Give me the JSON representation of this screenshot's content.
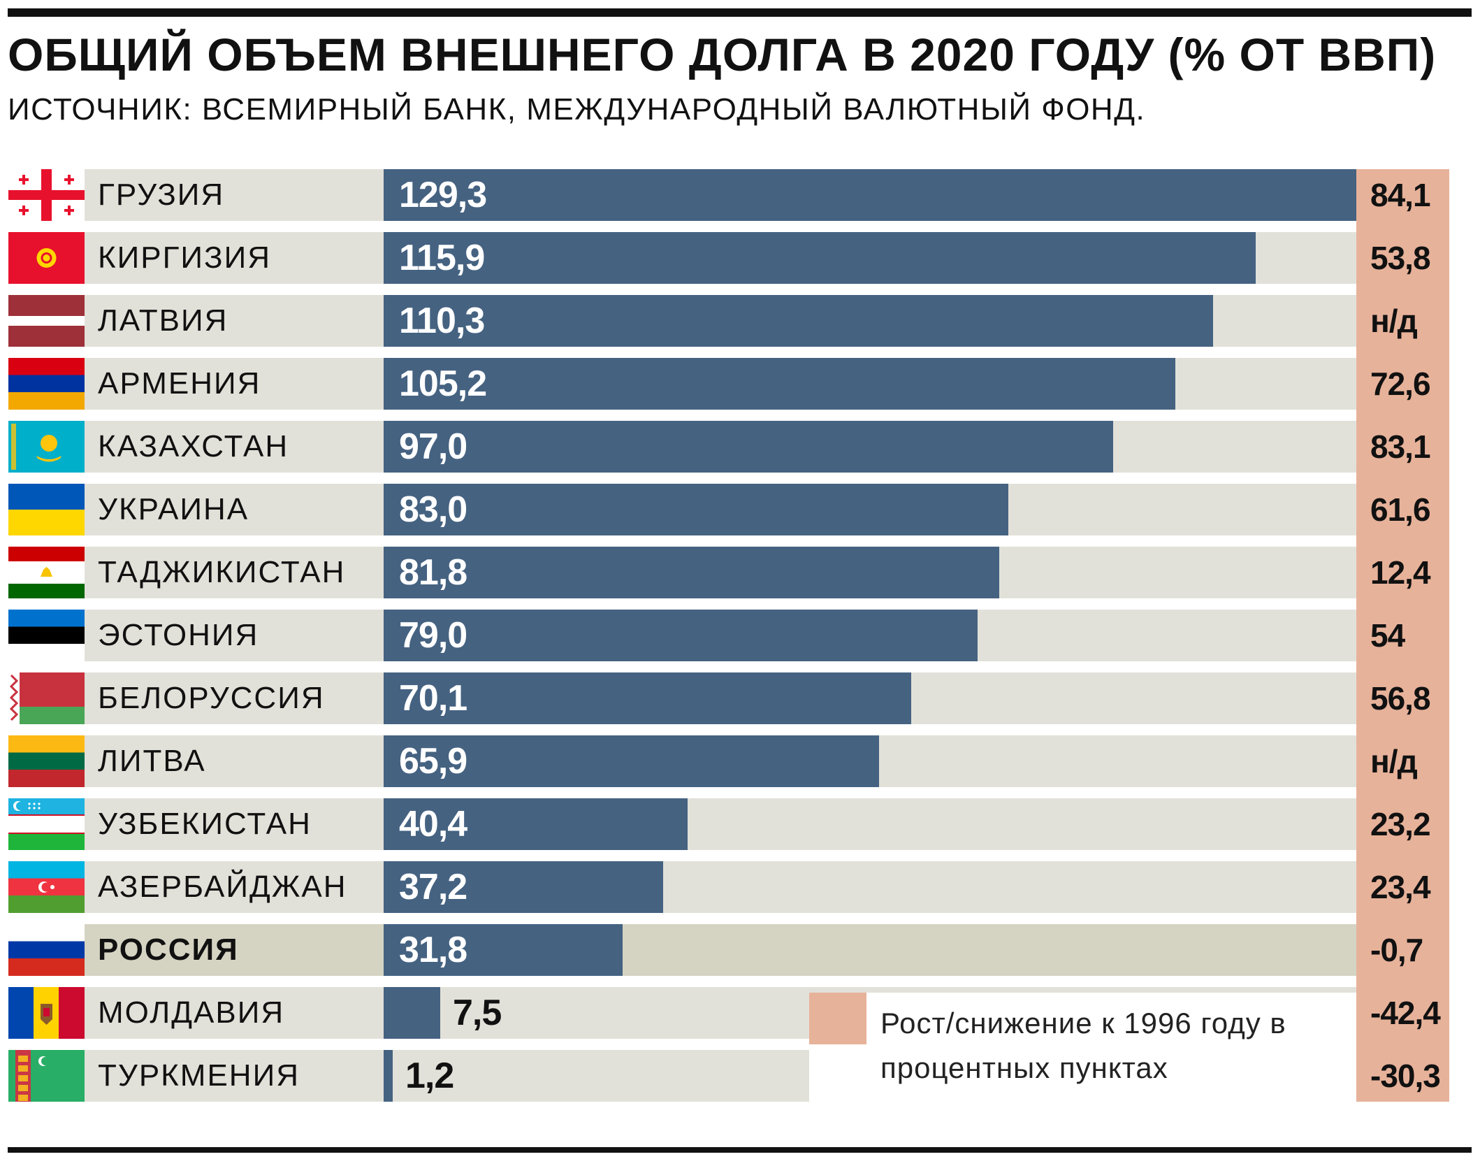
{
  "title": "ОБЩИЙ ОБЪЕМ ВНЕШНЕГО ДОЛГА В 2020 ГОДУ (% ОТ ВВП)",
  "source": "ИСТОЧНИК: ВСЕМИРНЫЙ БАНК, МЕЖДУНАРОДНЫЙ ВАЛЮТНЫЙ ФОНД.",
  "legend": "Рост/снижение к 1996 году в процентных пунктах",
  "colors": {
    "bar": "#456281",
    "track": "#e2e1d9",
    "change": "#e7b29a",
    "highlight_track": "#d5d4c3"
  },
  "chart_data": {
    "type": "bar",
    "orientation": "horizontal",
    "title": "ОБЩИЙ ОБЪЕМ ВНЕШНЕГО ДОЛГА В 2020 ГОДУ (% ОТ ВВП)",
    "xlim": [
      0,
      129.3
    ],
    "categories": [
      "ГРУЗИЯ",
      "КИРГИЗИЯ",
      "ЛАТВИЯ",
      "АРМЕНИЯ",
      "КАЗАХСТАН",
      "УКРАИНА",
      "ТАДЖИКИСТАН",
      "ЭСТОНИЯ",
      "БЕЛОРУССИЯ",
      "ЛИТВА",
      "УЗБЕКИСТАН",
      "АЗЕРБАЙДЖАН",
      "РОССИЯ",
      "МОЛДАВИЯ",
      "ТУРКМЕНИЯ"
    ],
    "values": [
      129.3,
      115.9,
      110.3,
      105.2,
      97.0,
      83.0,
      81.8,
      79.0,
      70.1,
      65.9,
      40.4,
      37.2,
      31.8,
      7.5,
      1.2
    ],
    "value_labels": [
      "129,3",
      "115,9",
      "110,3",
      "105,2",
      "97,0",
      "83,0",
      "81,8",
      "79,0",
      "70,1",
      "65,9",
      "40,4",
      "37,2",
      "31,8",
      "7,5",
      "1,2"
    ],
    "change_since_1996": [
      "84,1",
      "53,8",
      "н/д",
      "72,6",
      "83,1",
      "61,6",
      "12,4",
      "54",
      "56,8",
      "н/д",
      "23,2",
      "23,4",
      "-0,7",
      "-42,4",
      "-30,3"
    ],
    "flags": [
      "georgia-flag",
      "kyrgyzstan-flag",
      "latvia-flag",
      "armenia-flag",
      "kazakhstan-flag",
      "ukraine-flag",
      "tajikistan-flag",
      "estonia-flag",
      "belarus-flag",
      "lithuania-flag",
      "uzbekistan-flag",
      "azerbaijan-flag",
      "russia-flag",
      "moldova-flag",
      "turkmenistan-flag"
    ],
    "highlight": "РОССИЯ"
  }
}
